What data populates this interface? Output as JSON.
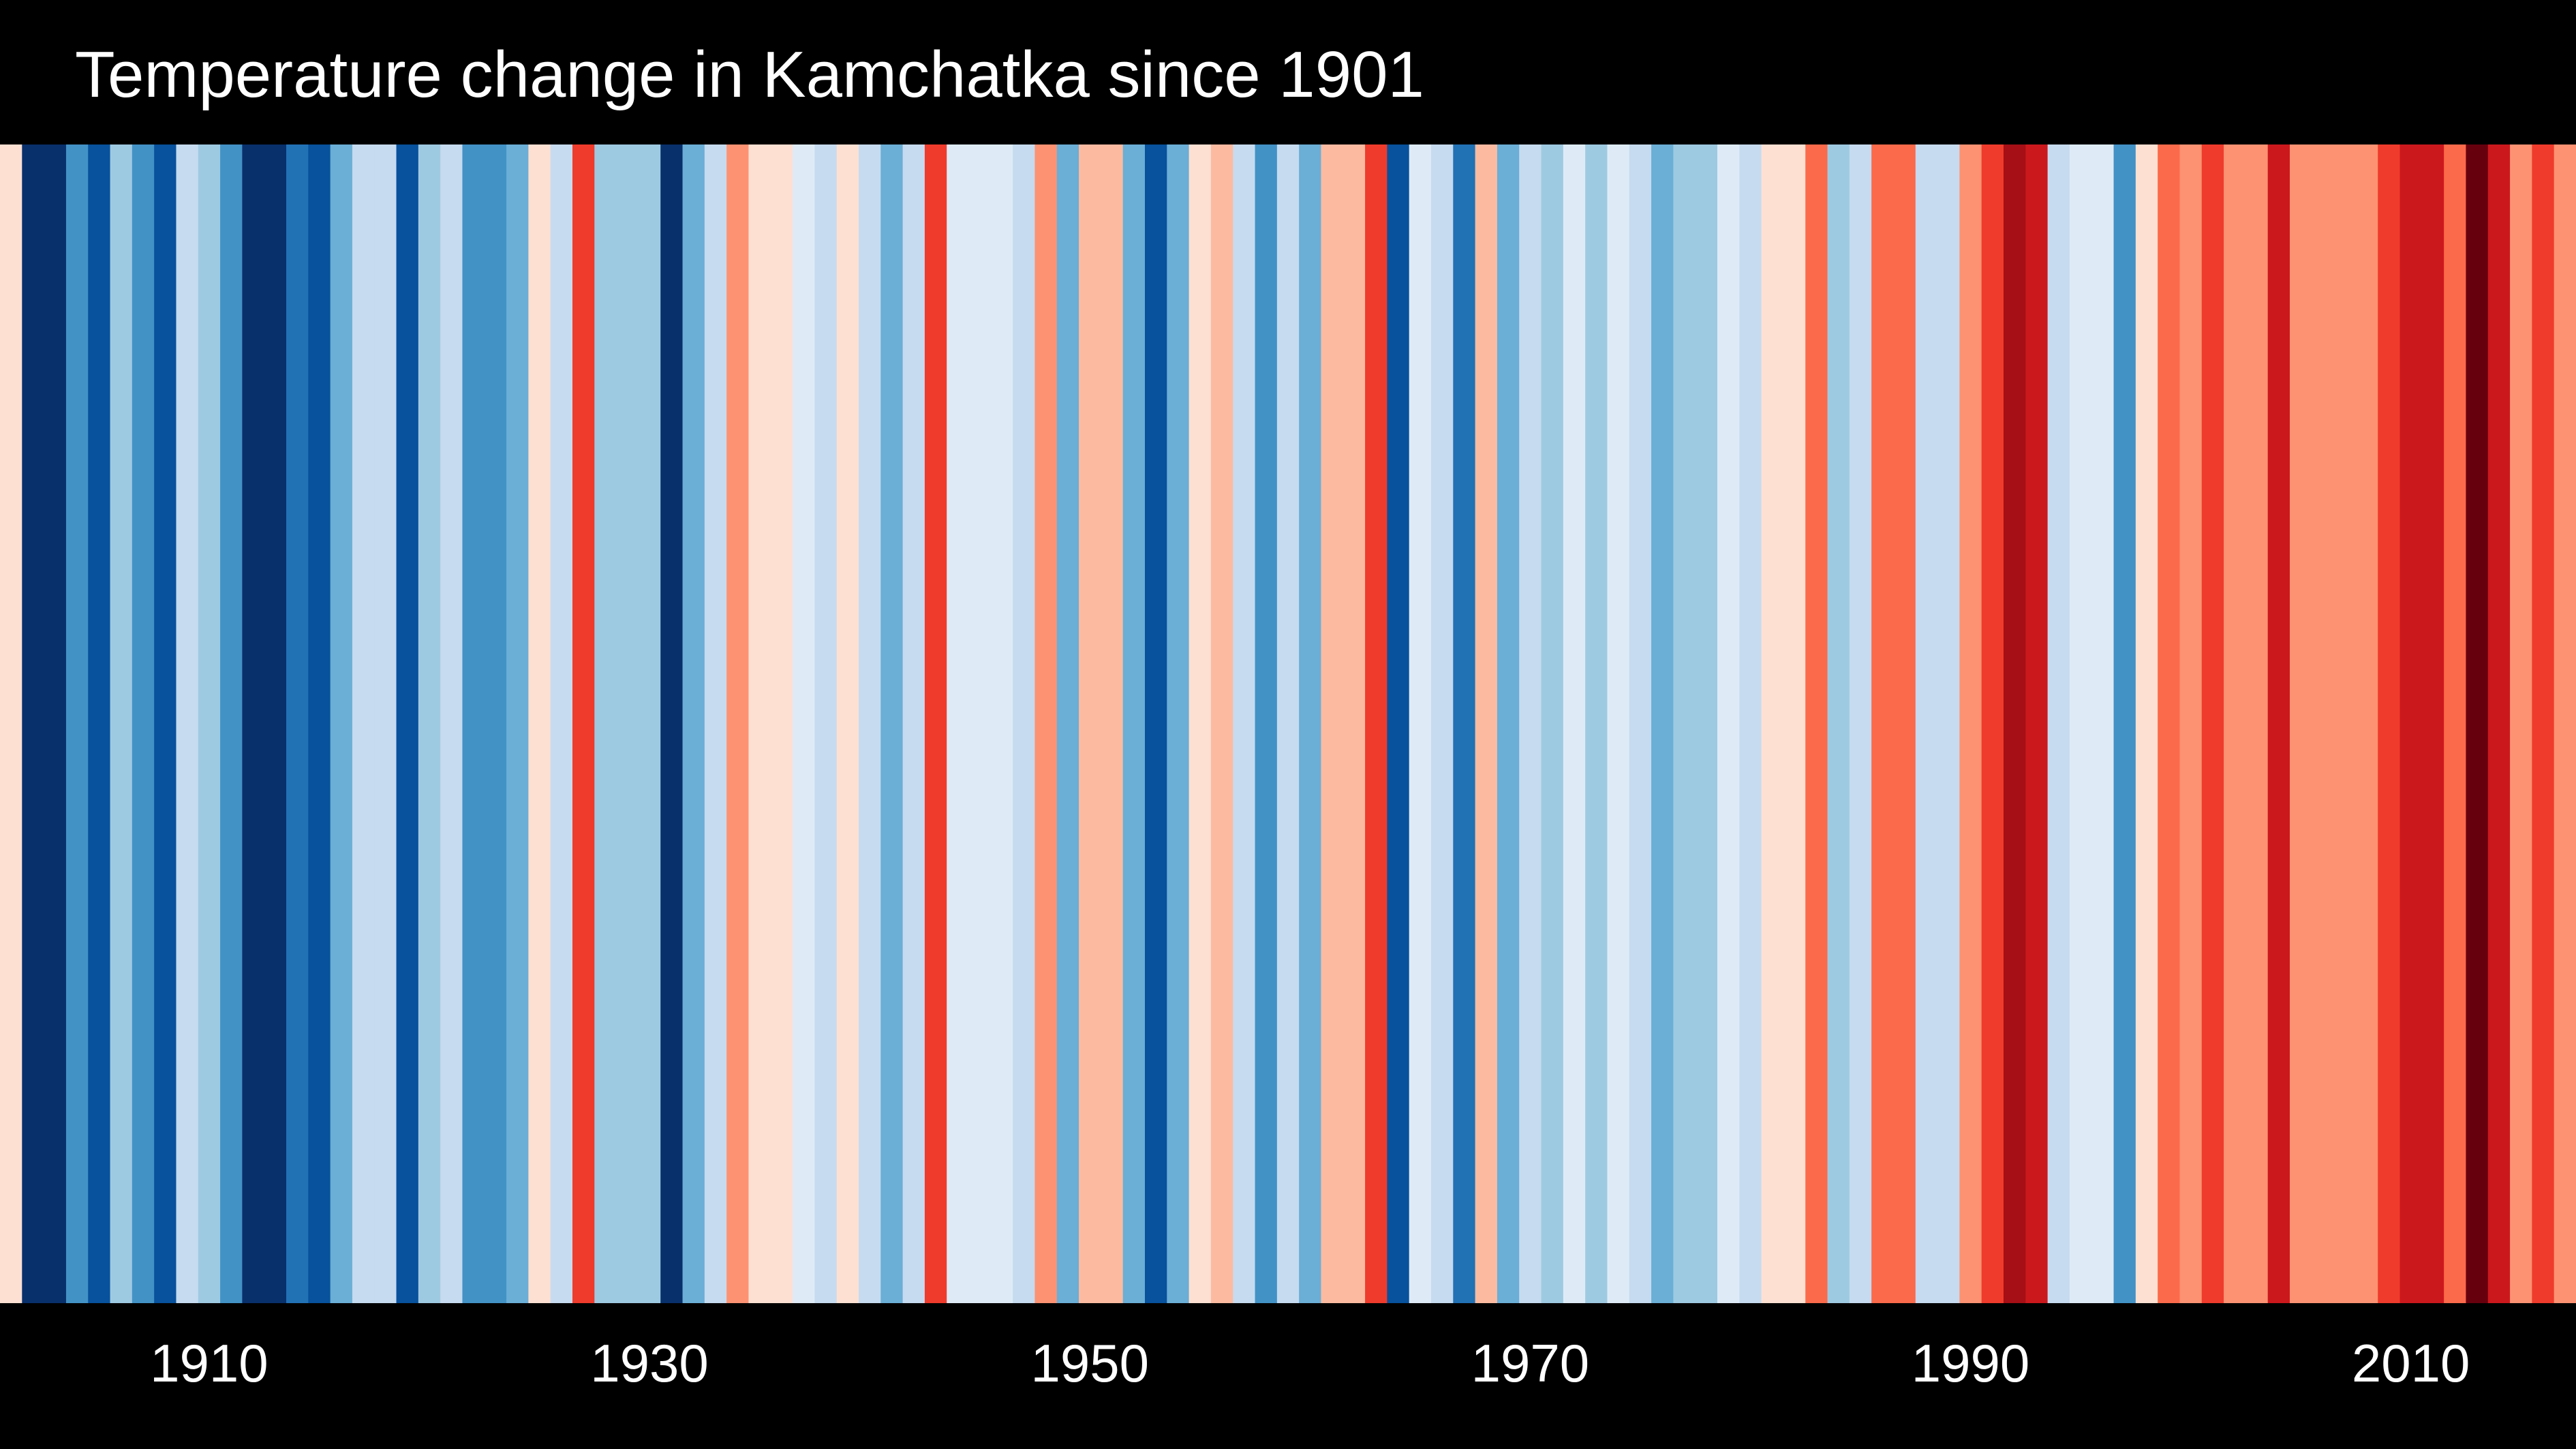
{
  "title": "Temperature change in Kamchatka since 1901",
  "chart_data": {
    "type": "heatmap",
    "title": "Temperature change in Kamchatka since 1901",
    "xlabel": "",
    "ylabel": "",
    "x_range": [
      1901,
      2017
    ],
    "x_ticks": [
      1910,
      1930,
      1950,
      1970,
      1990,
      2010
    ],
    "tick_labels": [
      "1910",
      "1930",
      "1950",
      "1970",
      "1990",
      "2010"
    ],
    "stripes": [
      {
        "year": 1901,
        "color": "#fee0d2"
      },
      {
        "year": 1902,
        "color": "#08306b"
      },
      {
        "year": 1903,
        "color": "#08306b"
      },
      {
        "year": 1904,
        "color": "#4292c6"
      },
      {
        "year": 1905,
        "color": "#08519c"
      },
      {
        "year": 1906,
        "color": "#9ecae1"
      },
      {
        "year": 1907,
        "color": "#4292c6"
      },
      {
        "year": 1908,
        "color": "#08519c"
      },
      {
        "year": 1909,
        "color": "#c6dbef"
      },
      {
        "year": 1910,
        "color": "#9ecae1"
      },
      {
        "year": 1911,
        "color": "#4292c6"
      },
      {
        "year": 1912,
        "color": "#08306b"
      },
      {
        "year": 1913,
        "color": "#08306b"
      },
      {
        "year": 1914,
        "color": "#2171b5"
      },
      {
        "year": 1915,
        "color": "#08519c"
      },
      {
        "year": 1916,
        "color": "#6baed6"
      },
      {
        "year": 1917,
        "color": "#c6dbef"
      },
      {
        "year": 1918,
        "color": "#c6dbef"
      },
      {
        "year": 1919,
        "color": "#08519c"
      },
      {
        "year": 1920,
        "color": "#9ecae1"
      },
      {
        "year": 1921,
        "color": "#c6dbef"
      },
      {
        "year": 1922,
        "color": "#4292c6"
      },
      {
        "year": 1923,
        "color": "#4292c6"
      },
      {
        "year": 1924,
        "color": "#6baed6"
      },
      {
        "year": 1925,
        "color": "#fee0d2"
      },
      {
        "year": 1926,
        "color": "#c6dbef"
      },
      {
        "year": 1927,
        "color": "#ef3b2c"
      },
      {
        "year": 1928,
        "color": "#9ecae1"
      },
      {
        "year": 1929,
        "color": "#9ecae1"
      },
      {
        "year": 1930,
        "color": "#9ecae1"
      },
      {
        "year": 1931,
        "color": "#08306b"
      },
      {
        "year": 1932,
        "color": "#6baed6"
      },
      {
        "year": 1933,
        "color": "#c6dbef"
      },
      {
        "year": 1934,
        "color": "#fc9272"
      },
      {
        "year": 1935,
        "color": "#fee0d2"
      },
      {
        "year": 1936,
        "color": "#fee0d2"
      },
      {
        "year": 1937,
        "color": "#deebf7"
      },
      {
        "year": 1938,
        "color": "#c6dbef"
      },
      {
        "year": 1939,
        "color": "#fee0d2"
      },
      {
        "year": 1940,
        "color": "#c6dbef"
      },
      {
        "year": 1941,
        "color": "#6baed6"
      },
      {
        "year": 1942,
        "color": "#c6dbef"
      },
      {
        "year": 1943,
        "color": "#ef3b2c"
      },
      {
        "year": 1944,
        "color": "#deebf7"
      },
      {
        "year": 1945,
        "color": "#deebf7"
      },
      {
        "year": 1946,
        "color": "#deebf7"
      },
      {
        "year": 1947,
        "color": "#c6dbef"
      },
      {
        "year": 1948,
        "color": "#fc9272"
      },
      {
        "year": 1949,
        "color": "#6baed6"
      },
      {
        "year": 1950,
        "color": "#fcbba1"
      },
      {
        "year": 1951,
        "color": "#fcbba1"
      },
      {
        "year": 1952,
        "color": "#6baed6"
      },
      {
        "year": 1953,
        "color": "#08519c"
      },
      {
        "year": 1954,
        "color": "#6baed6"
      },
      {
        "year": 1955,
        "color": "#fee0d2"
      },
      {
        "year": 1956,
        "color": "#fcbba1"
      },
      {
        "year": 1957,
        "color": "#c6dbef"
      },
      {
        "year": 1958,
        "color": "#4292c6"
      },
      {
        "year": 1959,
        "color": "#c6dbef"
      },
      {
        "year": 1960,
        "color": "#6baed6"
      },
      {
        "year": 1961,
        "color": "#fcbba1"
      },
      {
        "year": 1962,
        "color": "#fcbba1"
      },
      {
        "year": 1963,
        "color": "#ef3b2c"
      },
      {
        "year": 1964,
        "color": "#08519c"
      },
      {
        "year": 1965,
        "color": "#deebf7"
      },
      {
        "year": 1966,
        "color": "#c6dbef"
      },
      {
        "year": 1967,
        "color": "#2171b5"
      },
      {
        "year": 1968,
        "color": "#fcbba1"
      },
      {
        "year": 1969,
        "color": "#6baed6"
      },
      {
        "year": 1970,
        "color": "#c6dbef"
      },
      {
        "year": 1971,
        "color": "#9ecae1"
      },
      {
        "year": 1972,
        "color": "#deebf7"
      },
      {
        "year": 1973,
        "color": "#9ecae1"
      },
      {
        "year": 1974,
        "color": "#deebf7"
      },
      {
        "year": 1975,
        "color": "#c6dbef"
      },
      {
        "year": 1976,
        "color": "#6baed6"
      },
      {
        "year": 1977,
        "color": "#9ecae1"
      },
      {
        "year": 1978,
        "color": "#9ecae1"
      },
      {
        "year": 1979,
        "color": "#deebf7"
      },
      {
        "year": 1980,
        "color": "#c6dbef"
      },
      {
        "year": 1981,
        "color": "#fee0d2"
      },
      {
        "year": 1982,
        "color": "#fee0d2"
      },
      {
        "year": 1983,
        "color": "#fb6a4a"
      },
      {
        "year": 1984,
        "color": "#9ecae1"
      },
      {
        "year": 1985,
        "color": "#c6dbef"
      },
      {
        "year": 1986,
        "color": "#fb6a4a"
      },
      {
        "year": 1987,
        "color": "#fb6a4a"
      },
      {
        "year": 1988,
        "color": "#c6dbef"
      },
      {
        "year": 1989,
        "color": "#c6dbef"
      },
      {
        "year": 1990,
        "color": "#fc9272"
      },
      {
        "year": 1991,
        "color": "#ef3b2c"
      },
      {
        "year": 1992,
        "color": "#a50f15"
      },
      {
        "year": 1993,
        "color": "#cb181d"
      },
      {
        "year": 1994,
        "color": "#c6dbef"
      },
      {
        "year": 1995,
        "color": "#deebf7"
      },
      {
        "year": 1996,
        "color": "#deebf7"
      },
      {
        "year": 1997,
        "color": "#4292c6"
      },
      {
        "year": 1998,
        "color": "#fee0d2"
      },
      {
        "year": 1999,
        "color": "#fb6a4a"
      },
      {
        "year": 2000,
        "color": "#fc9272"
      },
      {
        "year": 2001,
        "color": "#ef3b2c"
      },
      {
        "year": 2002,
        "color": "#fc9272"
      },
      {
        "year": 2003,
        "color": "#fc9272"
      },
      {
        "year": 2004,
        "color": "#cb181d"
      },
      {
        "year": 2005,
        "color": "#fc9272"
      },
      {
        "year": 2006,
        "color": "#fc9272"
      },
      {
        "year": 2007,
        "color": "#fc9272"
      },
      {
        "year": 2008,
        "color": "#fc9272"
      },
      {
        "year": 2009,
        "color": "#ef3b2c"
      },
      {
        "year": 2010,
        "color": "#cb181d"
      },
      {
        "year": 2011,
        "color": "#cb181d"
      },
      {
        "year": 2012,
        "color": "#fb6a4a"
      },
      {
        "year": 2013,
        "color": "#67000d"
      },
      {
        "year": 2014,
        "color": "#cb181d"
      },
      {
        "year": 2015,
        "color": "#fc9272"
      },
      {
        "year": 2016,
        "color": "#ef3b2c"
      },
      {
        "year": 2017,
        "color": "#fc9272"
      }
    ],
    "colors": {
      "background": "#000000",
      "text": "#ffffff"
    }
  }
}
